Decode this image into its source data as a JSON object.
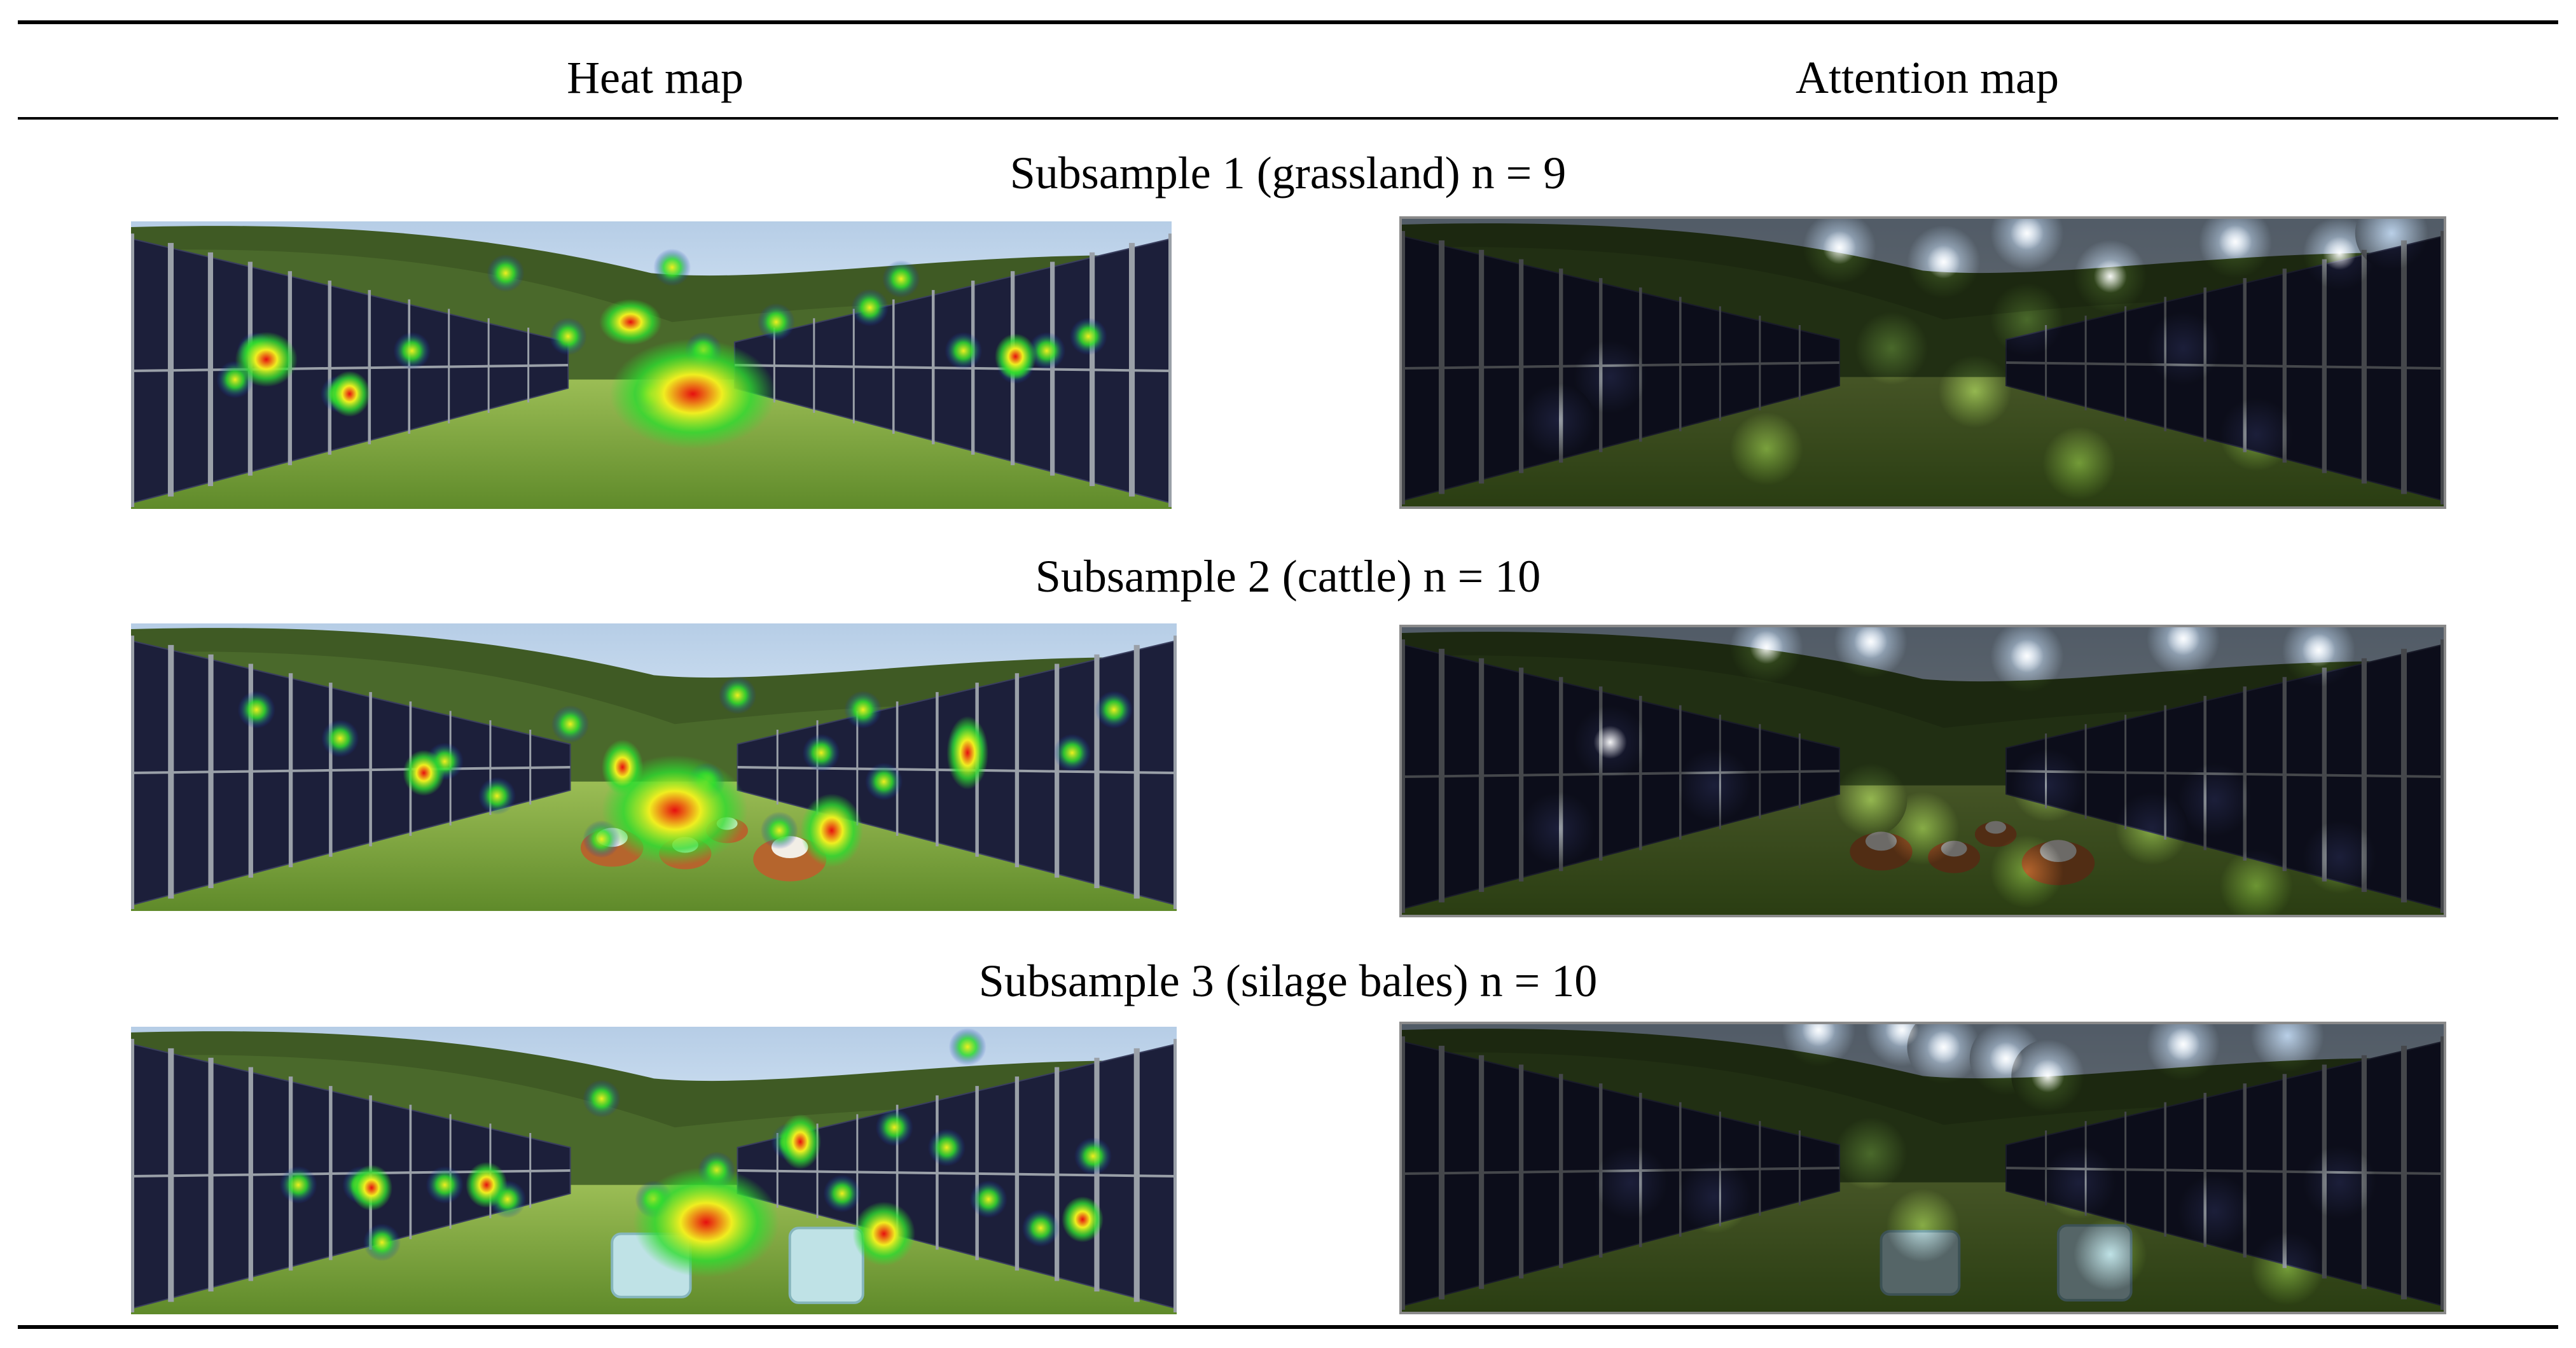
{
  "table": {
    "columns": [
      "Heat map",
      "Attention map"
    ],
    "rows": [
      {
        "caption": "Subsample 1 (grassland) n = 9",
        "heat": [
          [
            0.12,
            0.45
          ],
          [
            0.27,
            0.45
          ],
          [
            0.36,
            0.18
          ],
          [
            0.42,
            0.4
          ],
          [
            0.52,
            0.16
          ],
          [
            0.5,
            0.6
          ],
          [
            0.55,
            0.45
          ],
          [
            0.62,
            0.35
          ],
          [
            0.71,
            0.3
          ],
          [
            0.74,
            0.2
          ],
          [
            0.8,
            0.45
          ],
          [
            0.85,
            0.5
          ],
          [
            0.88,
            0.45
          ],
          [
            0.1,
            0.55
          ],
          [
            0.2,
            0.6
          ],
          [
            0.92,
            0.4
          ]
        ],
        "hot": [
          [
            0.54,
            0.6,
            0.08,
            0.12
          ],
          [
            0.13,
            0.48,
            0.03,
            0.06
          ],
          [
            0.48,
            0.35,
            0.03,
            0.05
          ],
          [
            0.85,
            0.47,
            0.02,
            0.05
          ],
          [
            0.21,
            0.6,
            0.02,
            0.05
          ]
        ],
        "attn": [
          [
            0.42,
            0.1
          ],
          [
            0.52,
            0.15
          ],
          [
            0.6,
            0.05
          ],
          [
            0.68,
            0.2
          ],
          [
            0.8,
            0.08
          ],
          [
            0.9,
            0.12
          ],
          [
            0.55,
            0.6
          ],
          [
            0.35,
            0.8
          ],
          [
            0.65,
            0.85
          ],
          [
            0.82,
            0.75
          ],
          [
            0.2,
            0.55
          ],
          [
            0.15,
            0.7
          ],
          [
            0.75,
            0.45
          ],
          [
            0.47,
            0.45
          ],
          [
            0.6,
            0.35
          ],
          [
            0.95,
            0.05
          ]
        ],
        "objects": "none"
      },
      {
        "caption": "Subsample 2 (cattle) n = 10",
        "heat": [
          [
            0.12,
            0.3
          ],
          [
            0.2,
            0.4
          ],
          [
            0.3,
            0.48
          ],
          [
            0.42,
            0.35
          ],
          [
            0.5,
            0.65
          ],
          [
            0.55,
            0.55
          ],
          [
            0.58,
            0.25
          ],
          [
            0.66,
            0.45
          ],
          [
            0.72,
            0.55
          ],
          [
            0.8,
            0.42
          ],
          [
            0.9,
            0.45
          ],
          [
            0.35,
            0.6
          ],
          [
            0.45,
            0.75
          ],
          [
            0.62,
            0.72
          ],
          [
            0.7,
            0.3
          ],
          [
            0.94,
            0.3
          ]
        ],
        "hot": [
          [
            0.52,
            0.65,
            0.07,
            0.12
          ],
          [
            0.28,
            0.52,
            0.02,
            0.05
          ],
          [
            0.8,
            0.45,
            0.02,
            0.08
          ],
          [
            0.67,
            0.72,
            0.03,
            0.08
          ],
          [
            0.47,
            0.5,
            0.02,
            0.06
          ]
        ],
        "attn": [
          [
            0.35,
            0.07
          ],
          [
            0.45,
            0.05
          ],
          [
            0.6,
            0.1
          ],
          [
            0.75,
            0.04
          ],
          [
            0.88,
            0.08
          ],
          [
            0.2,
            0.4
          ],
          [
            0.3,
            0.55
          ],
          [
            0.5,
            0.7
          ],
          [
            0.6,
            0.85
          ],
          [
            0.78,
            0.6
          ],
          [
            0.9,
            0.8
          ],
          [
            0.45,
            0.6
          ],
          [
            0.62,
            0.55
          ],
          [
            0.72,
            0.7
          ],
          [
            0.15,
            0.7
          ],
          [
            0.82,
            0.9
          ]
        ],
        "objects": "cattle"
      },
      {
        "caption": "Subsample 3 (silage bales) n = 10",
        "heat": [
          [
            0.22,
            0.55
          ],
          [
            0.24,
            0.75
          ],
          [
            0.3,
            0.55
          ],
          [
            0.36,
            0.6
          ],
          [
            0.45,
            0.25
          ],
          [
            0.5,
            0.6
          ],
          [
            0.56,
            0.5
          ],
          [
            0.63,
            0.4
          ],
          [
            0.68,
            0.58
          ],
          [
            0.73,
            0.35
          ],
          [
            0.78,
            0.42
          ],
          [
            0.82,
            0.6
          ],
          [
            0.87,
            0.7
          ],
          [
            0.92,
            0.45
          ],
          [
            0.16,
            0.55
          ],
          [
            0.8,
            0.07
          ]
        ],
        "hot": [
          [
            0.55,
            0.68,
            0.07,
            0.12
          ],
          [
            0.72,
            0.72,
            0.03,
            0.07
          ],
          [
            0.23,
            0.56,
            0.02,
            0.05
          ],
          [
            0.64,
            0.4,
            0.02,
            0.06
          ],
          [
            0.34,
            0.55,
            0.02,
            0.05
          ],
          [
            0.91,
            0.67,
            0.02,
            0.05
          ]
        ],
        "attn": [
          [
            0.4,
            0.02
          ],
          [
            0.48,
            0.02
          ],
          [
            0.52,
            0.08
          ],
          [
            0.58,
            0.12
          ],
          [
            0.62,
            0.18
          ],
          [
            0.75,
            0.07
          ],
          [
            0.85,
            0.04
          ],
          [
            0.3,
            0.6
          ],
          [
            0.5,
            0.7
          ],
          [
            0.68,
            0.8
          ],
          [
            0.85,
            0.85
          ],
          [
            0.22,
            0.55
          ],
          [
            0.65,
            0.55
          ],
          [
            0.78,
            0.65
          ],
          [
            0.45,
            0.45
          ],
          [
            0.9,
            0.55
          ]
        ],
        "objects": "bales"
      }
    ]
  },
  "palette": {
    "sky": "#c9dcef",
    "grass": "#7aa23a",
    "forest": "#3f5a24",
    "panel": "#1c1f3a",
    "frame": "#9aa0a8",
    "heat_green": "#2fdc2f",
    "heat_yellow": "#f0ee20",
    "heat_red": "#e60f0f",
    "attn_dim": "#000000",
    "cattle": "#b5652d",
    "bale": "#bfe2e6"
  }
}
